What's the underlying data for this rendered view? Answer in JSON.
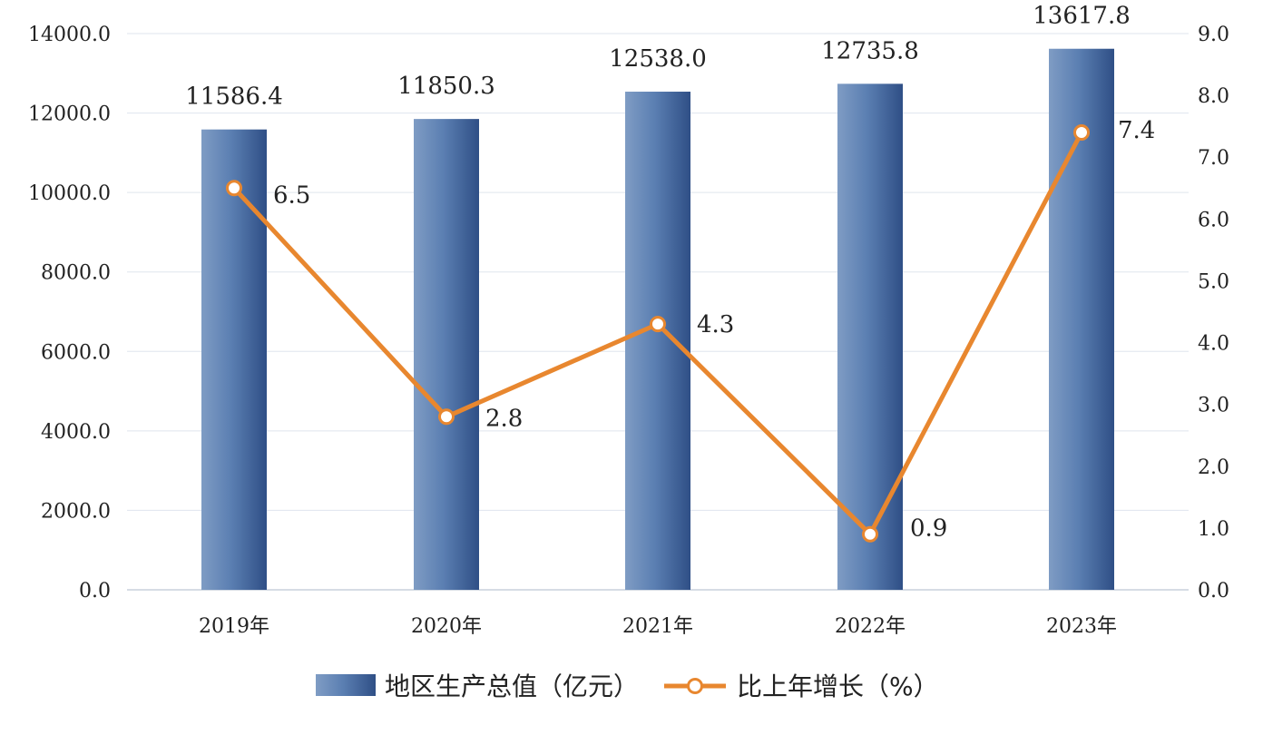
{
  "chart_data": {
    "type": "bar",
    "categories": [
      "2019年",
      "2020年",
      "2021年",
      "2022年",
      "2023年"
    ],
    "series": [
      {
        "name": "地区生产总值（亿元）",
        "type": "bar",
        "axis": "left",
        "values": [
          11586.4,
          11850.3,
          12538.0,
          12735.8,
          13617.8
        ],
        "labels": [
          "11586.4",
          "11850.3",
          "12538.0",
          "12735.8",
          "13617.8"
        ],
        "color": "#4a6fa5"
      },
      {
        "name": "比上年增长（%）",
        "type": "line",
        "axis": "right",
        "values": [
          6.5,
          2.8,
          4.3,
          0.9,
          7.4
        ],
        "labels": [
          "6.5",
          "2.8",
          "4.3",
          "0.9",
          "7.4"
        ],
        "color": "#e8872f"
      }
    ],
    "y_left": {
      "ylim": [
        0,
        14000
      ],
      "ticks": [
        "0.0",
        "2000.0",
        "4000.0",
        "6000.0",
        "8000.0",
        "10000.0",
        "12000.0",
        "14000.0"
      ]
    },
    "y_right": {
      "ylim": [
        0,
        9
      ],
      "ticks": [
        "0.0",
        "1.0",
        "2.0",
        "3.0",
        "4.0",
        "5.0",
        "6.0",
        "7.0",
        "8.0",
        "9.0"
      ]
    },
    "grid": true,
    "legend": "bottom-center"
  }
}
